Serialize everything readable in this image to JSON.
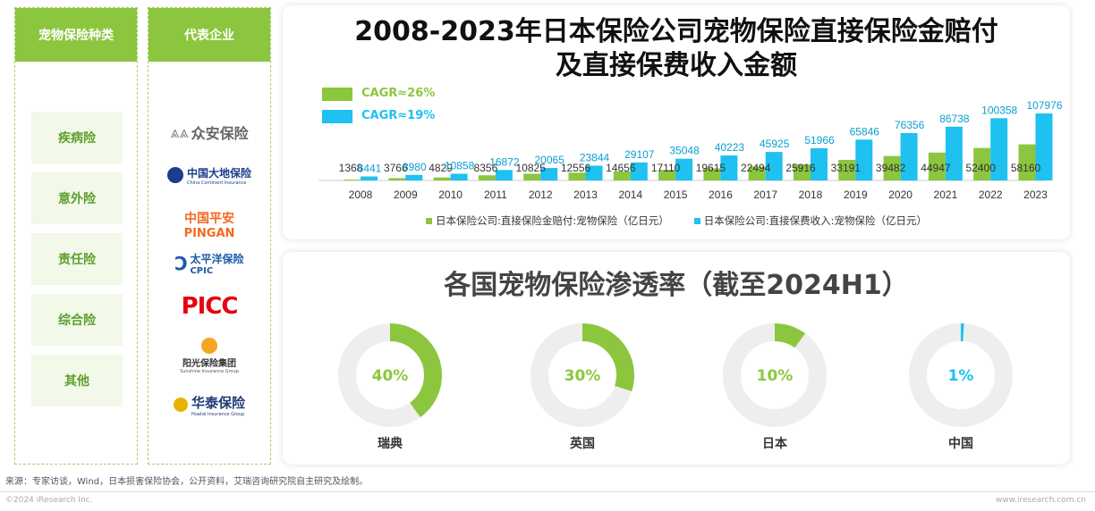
{
  "left_columns": {
    "types_header": "宠物保险种类",
    "types": [
      "疾病险",
      "意外险",
      "责任险",
      "综合险",
      "其他"
    ],
    "companies_header": "代表企业",
    "companies": [
      {
        "name": "众安保险"
      },
      {
        "name": "中国大地保险",
        "sub": "China Continent Insurance"
      },
      {
        "name": "中国平安",
        "sub": "PINGAN"
      },
      {
        "name": "太平洋保险",
        "sub": "CPIC"
      },
      {
        "name": "PICC"
      },
      {
        "name": "阳光保险集团",
        "sub": "Sunshine Insurance Group"
      },
      {
        "name": "华泰保险",
        "sub": "Huatai Insurance Group"
      }
    ]
  },
  "colors": {
    "green": "#8cc63f",
    "blue": "#1ec1ef",
    "track": "#eeeeee"
  },
  "chart_data": [
    {
      "type": "bar",
      "title": "2008-2023年日本保险公司宠物保险直接保险金赔付",
      "subtitle": "及直接保费收入金额",
      "categories": [
        "2008",
        "2009",
        "2010",
        "2011",
        "2012",
        "2013",
        "2014",
        "2015",
        "2016",
        "2017",
        "2018",
        "2019",
        "2020",
        "2021",
        "2022",
        "2023"
      ],
      "series": [
        {
          "name": "日本保险公司:直接保险金赔付:宠物保险（亿日元）",
          "cagr": "CAGR≈26%",
          "values": [
            1368,
            3766,
            4829,
            8356,
            10825,
            12556,
            14656,
            17110,
            19615,
            22494,
            25916,
            33191,
            39482,
            44947,
            52400,
            58160
          ]
        },
        {
          "name": "日本保险公司:直接保费收入:宠物保险（亿日元）",
          "cagr": "CAGR≈19%",
          "values": [
            6441,
            8980,
            10858,
            16872,
            20065,
            23844,
            29107,
            35048,
            40223,
            45925,
            51966,
            65846,
            76356,
            86738,
            100358,
            107976
          ]
        }
      ],
      "ylim": [
        0,
        108000
      ],
      "legend": "bottom"
    },
    {
      "type": "pie",
      "title": "各国宠物保险渗透率（截至2024H1）",
      "categories": [
        "瑞典",
        "英国",
        "日本",
        "中国"
      ],
      "values": [
        40,
        30,
        10,
        1
      ],
      "labels": [
        "40%",
        "30%",
        "10%",
        "1%"
      ]
    }
  ],
  "source": "来源：专家访谈，Wind，日本损害保险协会，公开资料，艾瑞咨询研究院自主研究及绘制。",
  "footer": {
    "left": "©2024 iResearch Inc.",
    "right": "www.iresearch.com.cn"
  }
}
